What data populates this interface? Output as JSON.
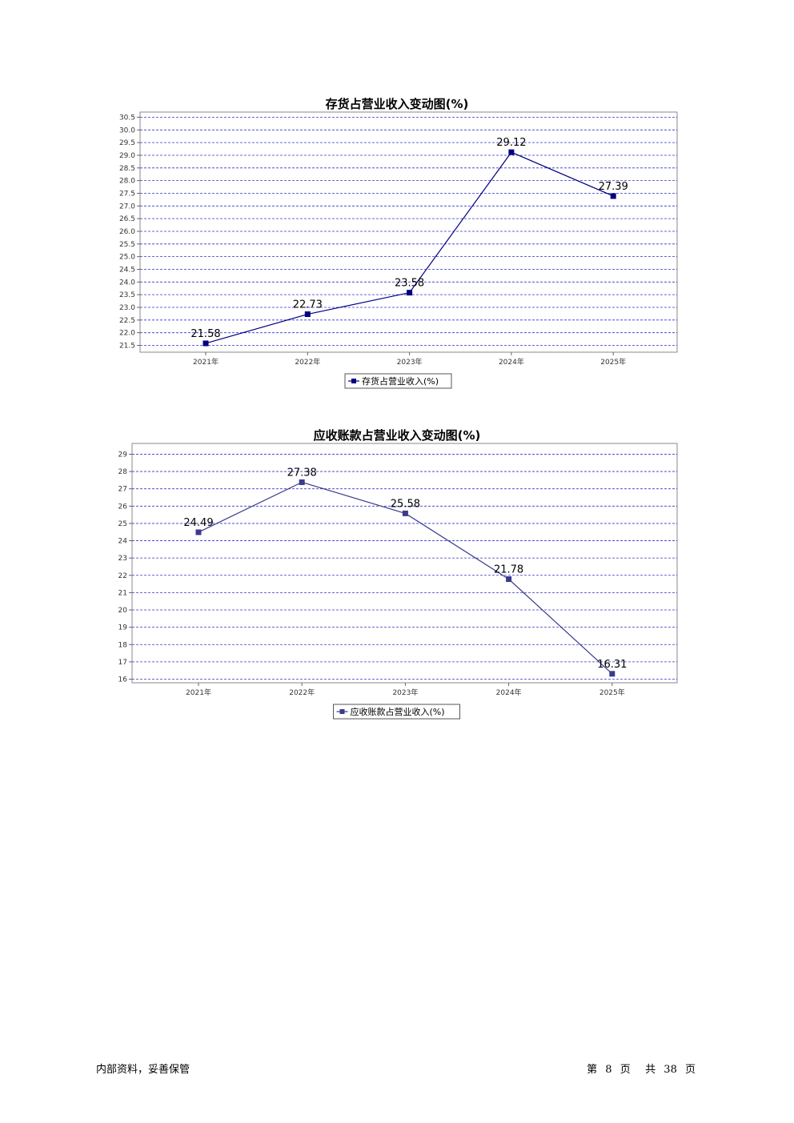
{
  "chart_data": [
    {
      "type": "line",
      "title": "存货占营业收入变动图(%)",
      "categories": [
        "2021年",
        "2022年",
        "2023年",
        "2024年",
        "2025年"
      ],
      "series": [
        {
          "name": "存货占营业收入(%)",
          "values": [
            21.58,
            22.73,
            23.58,
            29.12,
            27.39
          ],
          "color": "#000080"
        }
      ],
      "yticks": [
        "21.5",
        "22.0",
        "22.5",
        "23.0",
        "23.5",
        "24.0",
        "24.5",
        "25.0",
        "25.5",
        "26.0",
        "26.5",
        "27.0",
        "27.5",
        "28.0",
        "28.5",
        "29.0",
        "29.5",
        "30.0",
        "30.5"
      ],
      "ylim": [
        21.5,
        30.5
      ],
      "grid": true,
      "legend_position": "bottom"
    },
    {
      "type": "line",
      "title": "应收账款占营业收入变动图(%)",
      "categories": [
        "2021年",
        "2022年",
        "2023年",
        "2024年",
        "2025年"
      ],
      "series": [
        {
          "name": "应收账款占营业收入(%)",
          "values": [
            24.49,
            27.38,
            25.58,
            21.78,
            16.31
          ],
          "color": "#3b3a8c"
        }
      ],
      "yticks": [
        "16",
        "17",
        "18",
        "19",
        "20",
        "21",
        "22",
        "23",
        "24",
        "25",
        "26",
        "27",
        "28",
        "29"
      ],
      "ylim": [
        16,
        29
      ],
      "grid": true,
      "legend_position": "bottom"
    }
  ],
  "footer": {
    "left": "内部资料，妥善保管",
    "page_prefix": "第",
    "page_number": "8",
    "page_unit": "页",
    "total_prefix": "共",
    "total_pages": "38",
    "total_unit": "页"
  }
}
